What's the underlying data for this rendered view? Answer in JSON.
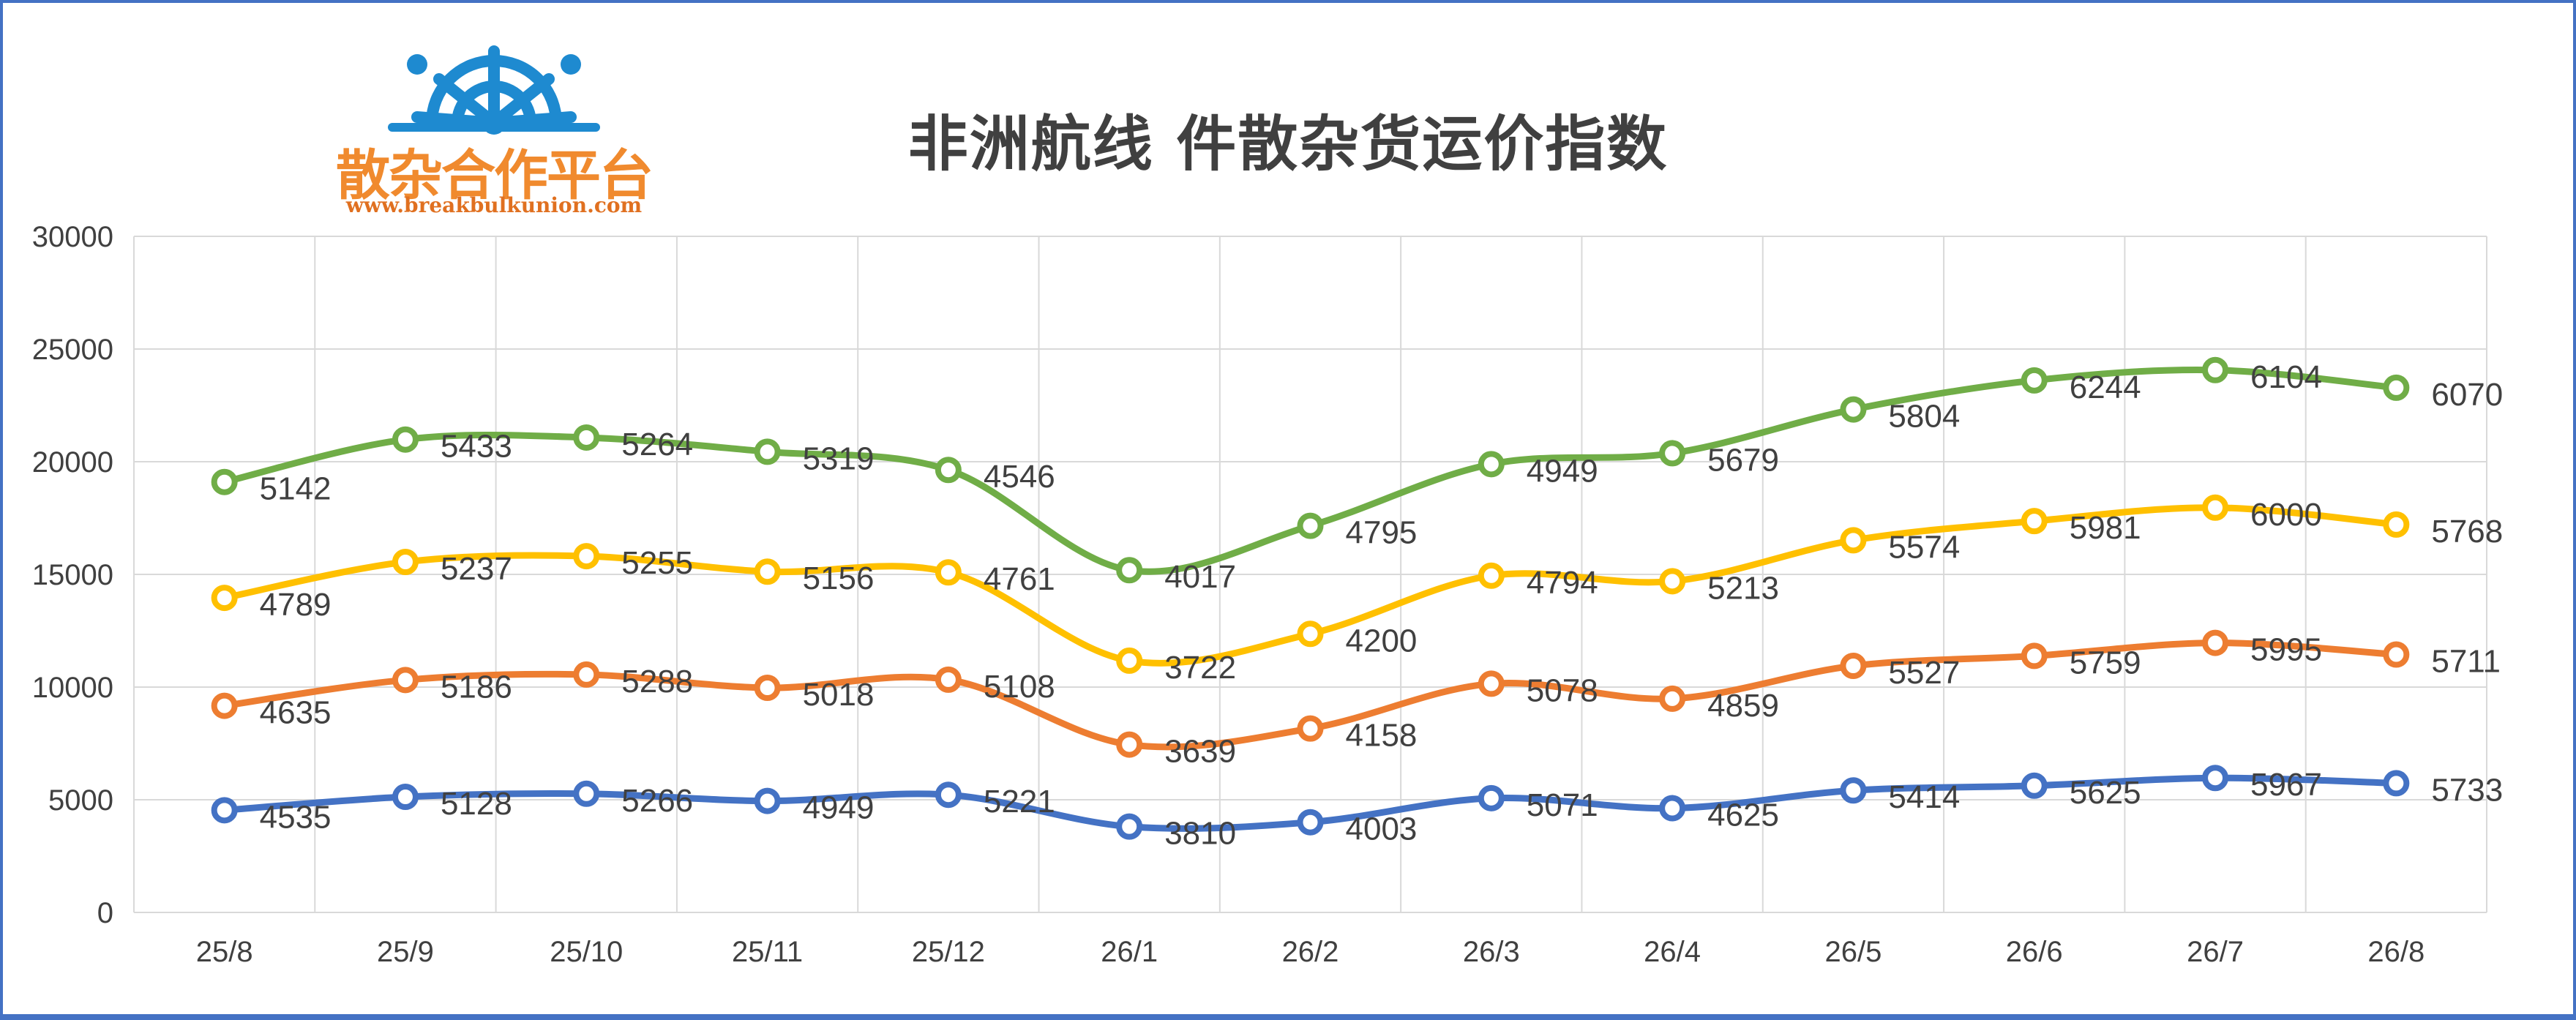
{
  "logo": {
    "name": "散杂合作平台",
    "url": "www.breakbulkunion.com",
    "icon": "ship-wheel-icon",
    "color": "#f08a2e",
    "icon_color": "#1e8ad0"
  },
  "chart_data": {
    "type": "line",
    "title": "非洲航线 件散杂货运价指数",
    "xlabel": "",
    "ylabel": "",
    "categories": [
      "25/8",
      "25/9",
      "25/10",
      "25/11",
      "25/12",
      "26/1",
      "26/2",
      "26/3",
      "26/4",
      "26/5",
      "26/6",
      "26/7",
      "26/8"
    ],
    "ylim": [
      0,
      30000
    ],
    "yticks": [
      0,
      5000,
      10000,
      15000,
      20000,
      25000,
      30000
    ],
    "grid": true,
    "stacked": true,
    "legend": "none",
    "series": [
      {
        "color": "#4472c4",
        "values": [
          4535,
          5128,
          5266,
          4949,
          5221,
          3810,
          4003,
          5071,
          4625,
          5414,
          5625,
          5967,
          5733
        ]
      },
      {
        "color": "#ed7d31",
        "values": [
          4635,
          5186,
          5288,
          5018,
          5108,
          3639,
          4158,
          5078,
          4859,
          5527,
          5759,
          5995,
          5711
        ]
      },
      {
        "color": "#ffc000",
        "values": [
          4789,
          5237,
          5255,
          5156,
          4761,
          3722,
          4200,
          4794,
          5213,
          5574,
          5981,
          6000,
          5768
        ]
      },
      {
        "color": "#70ad47",
        "values": [
          5142,
          5433,
          5264,
          5319,
          4546,
          4017,
          4795,
          4949,
          5679,
          5804,
          6244,
          6104,
          6070
        ]
      }
    ]
  }
}
